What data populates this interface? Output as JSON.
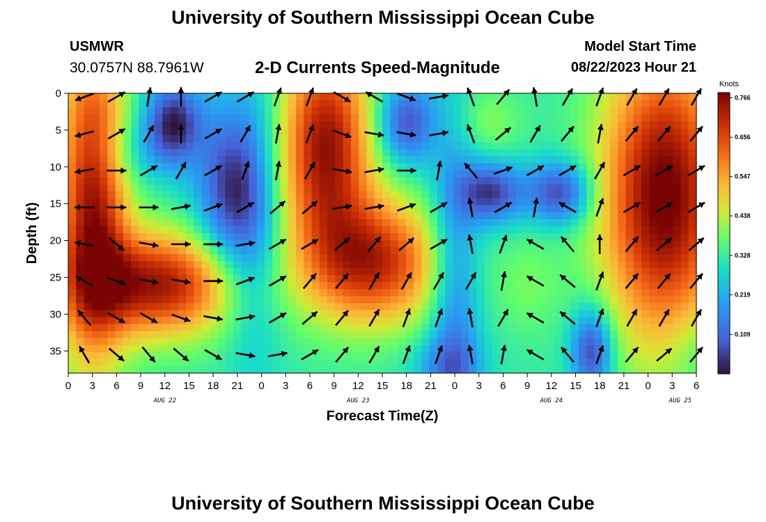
{
  "header": {
    "title": "University of Southern Mississippi Ocean Cube",
    "station_id": "USMWR",
    "coords": "30.0757N  88.7961W",
    "subtitle": "2-D Currents Speed-Magnitude",
    "start_label": "Model Start Time",
    "start_value": "08/22/2023 Hour 21"
  },
  "footer": {
    "title": "University of Southern Mississippi Ocean Cube"
  },
  "colors": {
    "arrow": "#000000",
    "background": "#ffffff"
  },
  "chart_data": {
    "type": "heatmap",
    "title": "2-D Currents Speed-Magnitude",
    "xlabel": "Forecast Time(Z)",
    "ylabel": "Depth (ft)",
    "x_unit": "hours since Aug 22 00Z",
    "xlim": [
      0,
      78
    ],
    "ylim": [
      38,
      0
    ],
    "x_ticks": [
      {
        "x": 0,
        "label": "0"
      },
      {
        "x": 3,
        "label": "3"
      },
      {
        "x": 6,
        "label": "6"
      },
      {
        "x": 9,
        "label": "9"
      },
      {
        "x": 12,
        "label": "12"
      },
      {
        "x": 15,
        "label": "15"
      },
      {
        "x": 18,
        "label": "18"
      },
      {
        "x": 21,
        "label": "21"
      },
      {
        "x": 24,
        "label": "0"
      },
      {
        "x": 27,
        "label": "3"
      },
      {
        "x": 30,
        "label": "6"
      },
      {
        "x": 33,
        "label": "9"
      },
      {
        "x": 36,
        "label": "12"
      },
      {
        "x": 39,
        "label": "15"
      },
      {
        "x": 42,
        "label": "18"
      },
      {
        "x": 45,
        "label": "21"
      },
      {
        "x": 48,
        "label": "0"
      },
      {
        "x": 51,
        "label": "3"
      },
      {
        "x": 54,
        "label": "6"
      },
      {
        "x": 57,
        "label": "9"
      },
      {
        "x": 60,
        "label": "12"
      },
      {
        "x": 63,
        "label": "15"
      },
      {
        "x": 66,
        "label": "18"
      },
      {
        "x": 69,
        "label": "21"
      },
      {
        "x": 72,
        "label": "0"
      },
      {
        "x": 75,
        "label": "3"
      },
      {
        "x": 78,
        "label": "6"
      }
    ],
    "day_labels": [
      {
        "x": 12,
        "label": "AUG 22"
      },
      {
        "x": 36,
        "label": "AUG 23"
      },
      {
        "x": 60,
        "label": "AUG 24"
      },
      {
        "x": 76,
        "label": "AUG 25"
      }
    ],
    "y_ticks": [
      0,
      5,
      10,
      15,
      20,
      25,
      30,
      35
    ],
    "colorbar": {
      "title": "Knots",
      "min": 0.0,
      "max": 0.78,
      "ticks": [
        0.766,
        0.656,
        0.547,
        0.438,
        0.328,
        0.219,
        0.109
      ]
    },
    "speed_field": {
      "unit": "knots",
      "base": 0.32,
      "blobs": [
        {
          "x": 3,
          "y": 14,
          "sx": 3.0,
          "sy": 16,
          "a": 0.42
        },
        {
          "x": 11,
          "y": 26,
          "sx": 7,
          "sy": 5,
          "a": 0.42
        },
        {
          "x": 13,
          "y": 4,
          "sx": 2.5,
          "sy": 4,
          "a": -0.3
        },
        {
          "x": 7.5,
          "y": 8,
          "sx": 4,
          "sy": 3,
          "a": -0.07
        },
        {
          "x": 20,
          "y": 13,
          "sx": 3,
          "sy": 8,
          "a": -0.25
        },
        {
          "x": 23,
          "y": 20,
          "sx": 2.5,
          "sy": 12,
          "a": -0.12
        },
        {
          "x": 24,
          "y": 2,
          "sx": 2.5,
          "sy": 4,
          "a": -0.02
        },
        {
          "x": 32,
          "y": 7,
          "sx": 4,
          "sy": 10,
          "a": 0.43
        },
        {
          "x": 38,
          "y": 23,
          "sx": 6,
          "sy": 6,
          "a": 0.38
        },
        {
          "x": 42,
          "y": 4,
          "sx": 2.5,
          "sy": 4,
          "a": -0.25
        },
        {
          "x": 48,
          "y": 26,
          "sx": 2.2,
          "sy": 16,
          "a": -0.18
        },
        {
          "x": 47,
          "y": 37,
          "sx": 3,
          "sy": 3,
          "a": -0.12
        },
        {
          "x": 52,
          "y": 4,
          "sx": 3,
          "sy": 3.5,
          "a": 0.08
        },
        {
          "x": 52.5,
          "y": 13.5,
          "sx": 2.8,
          "sy": 3,
          "a": -0.27
        },
        {
          "x": 61,
          "y": 13.5,
          "sx": 2.8,
          "sy": 3,
          "a": -0.27
        },
        {
          "x": 57,
          "y": 26,
          "sx": 3,
          "sy": 5,
          "a": 0.06
        },
        {
          "x": 65,
          "y": 35,
          "sx": 1.8,
          "sy": 4,
          "a": -0.28
        },
        {
          "x": 74,
          "y": 14,
          "sx": 5.5,
          "sy": 14,
          "a": 0.48
        },
        {
          "x": 78,
          "y": 35,
          "sx": 2.5,
          "sy": 4,
          "a": -0.05
        }
      ]
    },
    "current_vectors": {
      "unit": "knots",
      "columns_x": [
        0,
        4,
        8,
        12,
        16,
        20,
        24,
        28,
        32,
        36,
        40,
        44,
        48,
        52,
        56,
        60,
        64,
        68,
        72,
        76
      ],
      "rows_y": [
        0,
        5,
        10,
        15,
        20,
        25,
        30,
        35
      ],
      "directions_deg": [
        [
          250,
          60,
          10,
          0,
          60,
          60,
          20,
          20,
          120,
          300,
          110,
          80,
          340,
          40,
          350,
          30,
          20,
          30,
          30,
          30
        ],
        [
          255,
          60,
          30,
          0,
          60,
          30,
          10,
          20,
          110,
          100,
          100,
          80,
          340,
          50,
          30,
          40,
          10,
          40,
          40,
          40
        ],
        [
          260,
          90,
          60,
          30,
          60,
          20,
          10,
          30,
          100,
          80,
          90,
          10,
          320,
          70,
          60,
          60,
          30,
          60,
          60,
          60
        ],
        [
          270,
          90,
          90,
          80,
          70,
          60,
          50,
          50,
          80,
          80,
          70,
          60,
          350,
          60,
          10,
          300,
          20,
          60,
          60,
          60
        ],
        [
          280,
          130,
          100,
          90,
          90,
          80,
          60,
          60,
          50,
          40,
          50,
          60,
          350,
          20,
          300,
          320,
          0,
          40,
          50,
          50
        ],
        [
          300,
          110,
          100,
          100,
          90,
          70,
          60,
          40,
          40,
          30,
          30,
          30,
          30,
          10,
          300,
          310,
          20,
          40,
          40,
          40
        ],
        [
          320,
          120,
          120,
          110,
          100,
          80,
          60,
          50,
          40,
          30,
          20,
          20,
          350,
          30,
          300,
          310,
          20,
          30,
          30,
          30
        ],
        [
          330,
          130,
          140,
          130,
          120,
          100,
          80,
          60,
          40,
          30,
          20,
          20,
          350,
          10,
          300,
          320,
          20,
          40,
          50,
          40
        ]
      ]
    }
  }
}
